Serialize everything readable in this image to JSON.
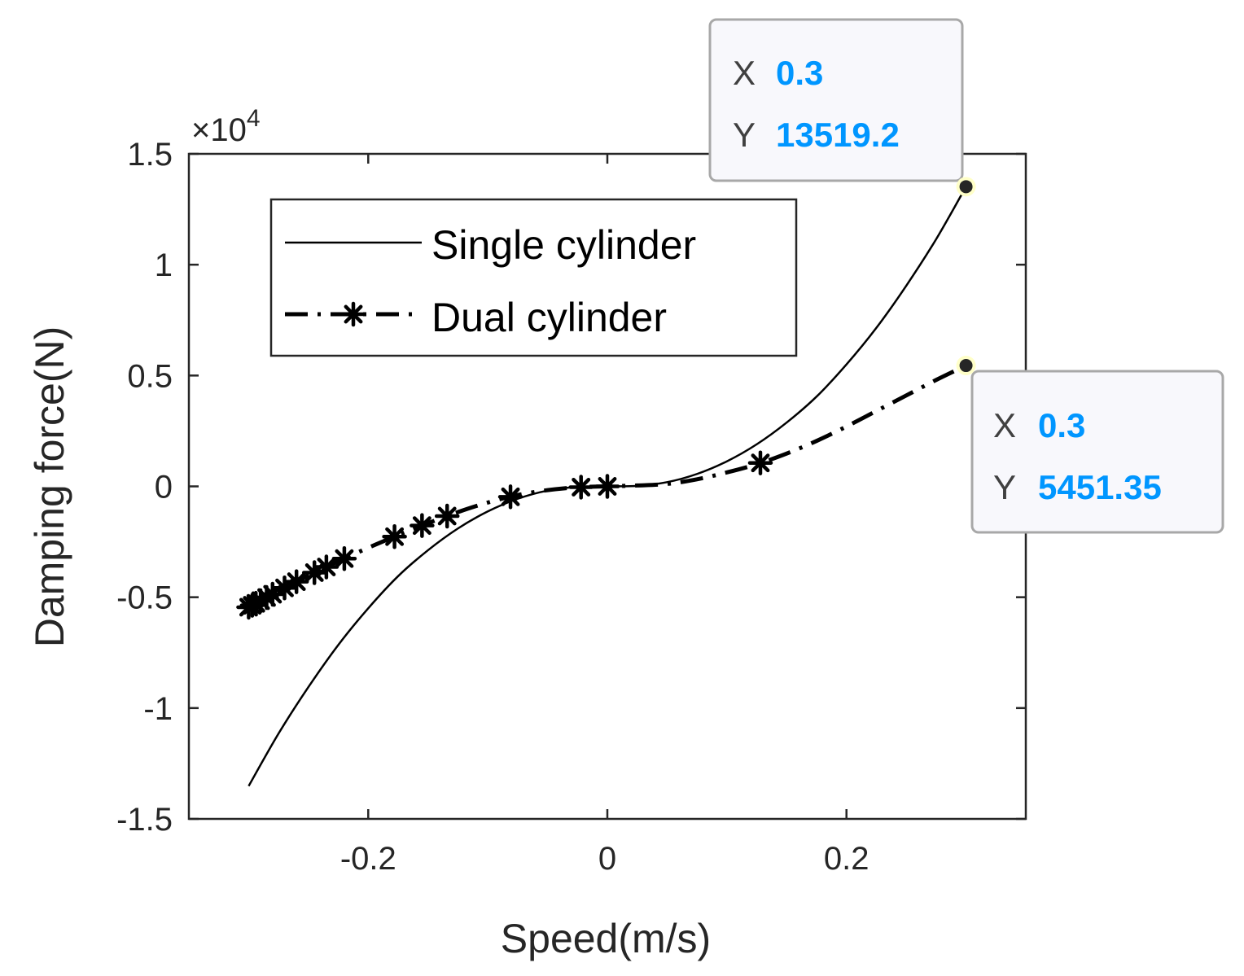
{
  "colors": {
    "axis": "#262626",
    "series": "#000000",
    "tooltip_bg": "#f8f8fc",
    "tooltip_border": "#a8a8a8",
    "tooltip_value": "#0096ff",
    "marker_halo": "#ffffc8"
  },
  "chart_data": {
    "type": "line",
    "xlabel": "Speed(m/s)",
    "ylabel": "Damping force(N)",
    "y_exponent_label": "×10",
    "y_exponent_power": "4",
    "xlim": [
      -0.35,
      0.35
    ],
    "ylim": [
      -15000,
      15000
    ],
    "x_ticks": [
      -0.2,
      0,
      0.2
    ],
    "x_tick_labels": [
      "-0.2",
      "0",
      "0.2"
    ],
    "y_ticks": [
      -15000,
      -10000,
      -5000,
      0,
      5000,
      10000,
      15000
    ],
    "y_tick_labels": [
      "-1.5",
      "-1",
      "-0.5",
      "0",
      "0.5",
      "1",
      "1.5"
    ],
    "grid": false,
    "legend_position": "top-left",
    "series": [
      {
        "name": "Single cylinder",
        "style": "solid",
        "x": [
          -0.3,
          -0.275,
          -0.25,
          -0.225,
          -0.2,
          -0.175,
          -0.15,
          -0.125,
          -0.1,
          -0.075,
          -0.05,
          -0.025,
          0,
          0.025,
          0.05,
          0.075,
          0.1,
          0.125,
          0.15,
          0.175,
          0.2,
          0.225,
          0.25,
          0.275,
          0.3
        ],
        "y": [
          -13519.2,
          -11150,
          -9050,
          -7150,
          -5500,
          -4050,
          -2880,
          -1900,
          -1130,
          -560,
          -190,
          -25,
          0,
          25,
          190,
          560,
          1130,
          1900,
          2880,
          4050,
          5500,
          7150,
          9050,
          11150,
          13519.2
        ]
      },
      {
        "name": "Dual cylinder",
        "style": "dash-dot",
        "marker": "asterisk",
        "x": [
          -0.3,
          -0.275,
          -0.25,
          -0.225,
          -0.2,
          -0.175,
          -0.15,
          -0.125,
          -0.1,
          -0.075,
          -0.05,
          -0.025,
          0,
          0.025,
          0.05,
          0.075,
          0.1,
          0.125,
          0.15,
          0.175,
          0.2,
          0.225,
          0.25,
          0.275,
          0.3
        ],
        "y": [
          -5451.35,
          -4720,
          -4020,
          -3380,
          -2770,
          -2200,
          -1660,
          -1160,
          -730,
          -390,
          -170,
          -40,
          0,
          40,
          110,
          320,
          630,
          1000,
          1480,
          2050,
          2700,
          3400,
          4100,
          4800,
          5451.35
        ]
      }
    ],
    "markers_x": [
      -0.3,
      -0.297,
      -0.294,
      -0.29,
      -0.285,
      -0.28,
      -0.27,
      -0.26,
      -0.245,
      -0.235,
      -0.22,
      -0.178,
      -0.155,
      -0.134,
      -0.081,
      -0.022,
      0,
      0.128
    ],
    "datatips": [
      {
        "x_key": "X",
        "x_value": "0.3",
        "y_key": "Y",
        "y_value": "13519.2",
        "x": 0.3,
        "y": 13519.2
      },
      {
        "x_key": "X",
        "x_value": "0.3",
        "y_key": "Y",
        "y_value": "5451.35",
        "x": 0.3,
        "y": 5451.35
      }
    ]
  }
}
